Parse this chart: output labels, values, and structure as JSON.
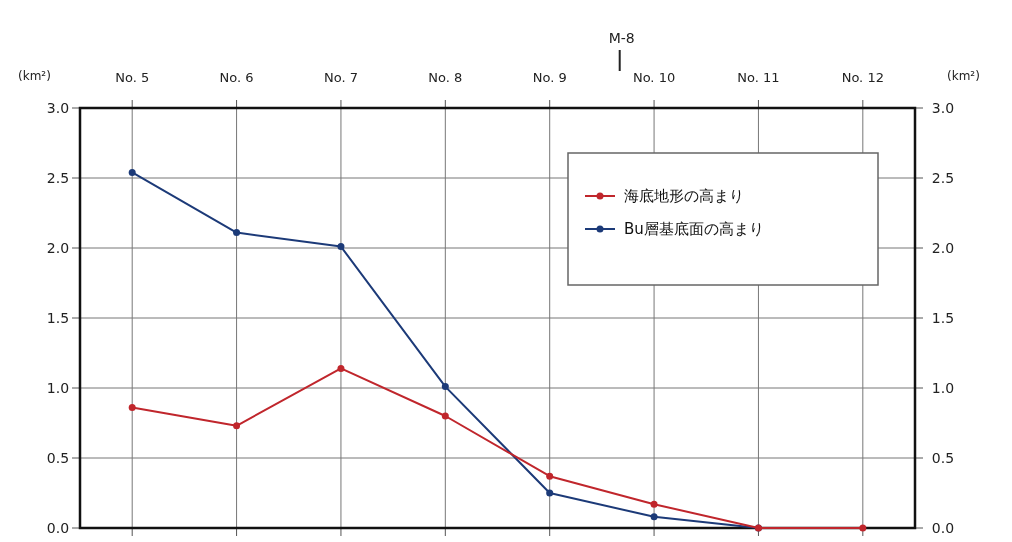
{
  "chart_data": {
    "type": "line",
    "ylabel": "(km²)",
    "y2label": "(km²)",
    "categories": [
      "No. 5",
      "No. 6",
      "No. 7",
      "No. 8",
      "No. 9",
      "No. 10",
      "No. 11",
      "No. 12"
    ],
    "series": [
      {
        "name": "海底地形の高まり",
        "color": "#c0262c",
        "values": [
          0.86,
          0.73,
          1.14,
          0.8,
          0.37,
          0.17,
          0,
          0
        ]
      },
      {
        "name": "Bu層基底面の高まり",
        "color": "#1c3a78",
        "values": [
          2.54,
          2.11,
          2.01,
          1.01,
          0.25,
          0.08,
          0,
          null
        ]
      }
    ],
    "ylim": [
      0,
      3
    ],
    "yticks": [
      {
        "value": 0,
        "label": "0.0"
      },
      {
        "value": 0.5,
        "label": "0.5"
      },
      {
        "value": 1,
        "label": "1.0"
      },
      {
        "value": 1.5,
        "label": "1.5"
      },
      {
        "value": 2,
        "label": "2.0"
      },
      {
        "value": 2.5,
        "label": "2.5"
      },
      {
        "value": 3,
        "label": "3.0"
      }
    ],
    "y2lim": [
      0,
      3
    ],
    "y2ticks": [
      {
        "value": 0,
        "label": "0.0"
      },
      {
        "value": 0.5,
        "label": "0.5"
      },
      {
        "value": 1,
        "label": "1.0"
      },
      {
        "value": 1.5,
        "label": "1.5"
      },
      {
        "value": 2,
        "label": "2.0"
      },
      {
        "value": 2.5,
        "label": "2.5"
      },
      {
        "value": 3,
        "label": "3.0"
      }
    ],
    "annotations": [
      "M-8"
    ],
    "grid": true,
    "legend": "top right",
    "marker": "circle",
    "line_style": "solid"
  }
}
